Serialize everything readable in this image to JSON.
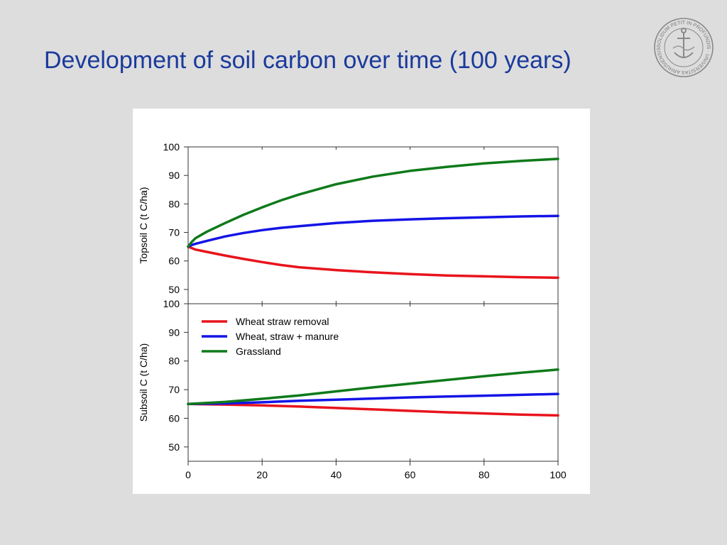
{
  "slide": {
    "title": "Development of soil carbon over time (100 years)",
    "seal_text": "SOLIDUM PETIT IN PROFUNDIS · UNIVERSITAS ARHUSIENSIS"
  },
  "colors": {
    "title": "#1a3a9c",
    "red": "#e8141c",
    "blue": "#1414e6",
    "green": "#0e7a1a"
  },
  "chart_data": [
    {
      "type": "line",
      "ylabel": "Topsoil C (t C/ha)",
      "xlim": [
        0,
        100
      ],
      "ylim": [
        45,
        100
      ],
      "yticks": [
        50,
        60,
        70,
        80,
        90,
        100
      ],
      "series": [
        {
          "name": "Wheat straw removal",
          "color": "#e8141c",
          "x": [
            0,
            1,
            2,
            5,
            10,
            15,
            20,
            25,
            30,
            40,
            50,
            60,
            70,
            80,
            90,
            100
          ],
          "y": [
            65,
            64.5,
            64.0,
            63.2,
            61.9,
            60.7,
            59.6,
            58.6,
            57.8,
            56.8,
            56.0,
            55.4,
            54.9,
            54.6,
            54.3,
            54.1
          ]
        },
        {
          "name": "Wheat, straw + manure",
          "color": "#1414e6",
          "x": [
            0,
            1,
            2,
            5,
            10,
            15,
            20,
            25,
            30,
            40,
            50,
            60,
            70,
            80,
            90,
            100
          ],
          "y": [
            65,
            65.6,
            66.0,
            67.0,
            68.6,
            69.8,
            70.8,
            71.6,
            72.2,
            73.3,
            74.1,
            74.6,
            75.0,
            75.3,
            75.6,
            75.8
          ]
        },
        {
          "name": "Grassland",
          "color": "#0e7a1a",
          "x": [
            0,
            1,
            2,
            5,
            10,
            15,
            20,
            25,
            30,
            40,
            50,
            60,
            70,
            80,
            90,
            100
          ],
          "y": [
            65,
            66.7,
            68.0,
            70.2,
            73.3,
            76.2,
            78.8,
            81.2,
            83.3,
            86.9,
            89.6,
            91.6,
            93.0,
            94.2,
            95.1,
            95.8
          ]
        }
      ]
    },
    {
      "type": "line",
      "ylabel": "Subsoil C (t C/ha)",
      "xlim": [
        0,
        100
      ],
      "ylim": [
        45,
        100
      ],
      "yticks": [
        50,
        60,
        70,
        80,
        90,
        100
      ],
      "xticks": [
        0,
        20,
        40,
        60,
        80,
        100
      ],
      "legend": "top-left",
      "series": [
        {
          "name": "Wheat straw removal",
          "color": "#e8141c",
          "x": [
            0,
            10,
            20,
            30,
            40,
            50,
            60,
            70,
            80,
            90,
            100
          ],
          "y": [
            65,
            64.8,
            64.5,
            64.1,
            63.6,
            63.1,
            62.6,
            62.1,
            61.7,
            61.3,
            61.0
          ]
        },
        {
          "name": "Wheat, straw + manure",
          "color": "#1414e6",
          "x": [
            0,
            10,
            20,
            30,
            40,
            50,
            60,
            70,
            80,
            90,
            100
          ],
          "y": [
            65,
            65.2,
            65.6,
            66.1,
            66.5,
            66.9,
            67.3,
            67.6,
            67.9,
            68.2,
            68.5
          ]
        },
        {
          "name": "Grassland",
          "color": "#0e7a1a",
          "x": [
            0,
            10,
            20,
            30,
            40,
            50,
            60,
            70,
            80,
            90,
            100
          ],
          "y": [
            65,
            65.7,
            66.8,
            68.0,
            69.4,
            70.8,
            72.1,
            73.4,
            74.7,
            75.9,
            77.0
          ]
        }
      ]
    }
  ]
}
